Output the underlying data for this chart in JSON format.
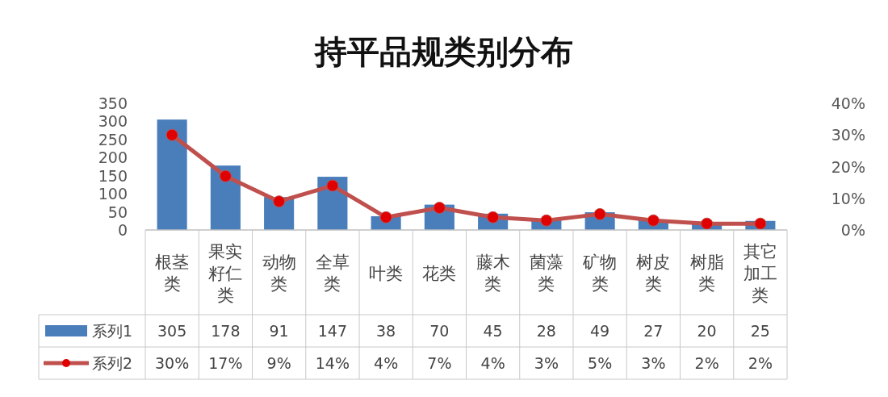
{
  "chart_data": {
    "type": "bar",
    "title": "持平品规类别分布",
    "categories": [
      "根茎类",
      "果实籽仁类",
      "动物类",
      "全草类",
      "叶类",
      "花类",
      "藤木类",
      "菌藻类",
      "矿物类",
      "树皮类",
      "树脂类",
      "其它加工类"
    ],
    "series": [
      {
        "name": "系列1",
        "color": "#4a7ebb",
        "values": [
          305,
          178,
          91,
          147,
          38,
          70,
          45,
          28,
          49,
          27,
          20,
          25
        ],
        "value_labels": [
          "305",
          "178",
          "91",
          "147",
          "38",
          "70",
          "45",
          "28",
          "49",
          "27",
          "20",
          "25"
        ]
      },
      {
        "name": "系列2",
        "type": "line",
        "axis": "y2",
        "color": "#c0504d",
        "marker": "circle",
        "values": [
          30,
          17,
          9,
          14,
          4,
          7,
          4,
          3,
          5,
          3,
          2,
          2
        ],
        "value_labels": [
          "30%",
          "17%",
          "9%",
          "14%",
          "4%",
          "7%",
          "4%",
          "3%",
          "5%",
          "3%",
          "2%",
          "2%"
        ]
      }
    ],
    "ylim": [
      0,
      350
    ],
    "yticks": [
      0,
      50,
      100,
      150,
      200,
      250,
      300,
      350
    ],
    "y2lim": [
      0,
      40
    ],
    "y2ticks": [
      {
        "value": 0,
        "label": "0%"
      },
      {
        "value": 10,
        "label": "10%"
      },
      {
        "value": 20,
        "label": "20%"
      },
      {
        "value": 30,
        "label": "30%"
      },
      {
        "value": 40,
        "label": "40%"
      }
    ],
    "legend": "bottom left",
    "grid": false
  }
}
